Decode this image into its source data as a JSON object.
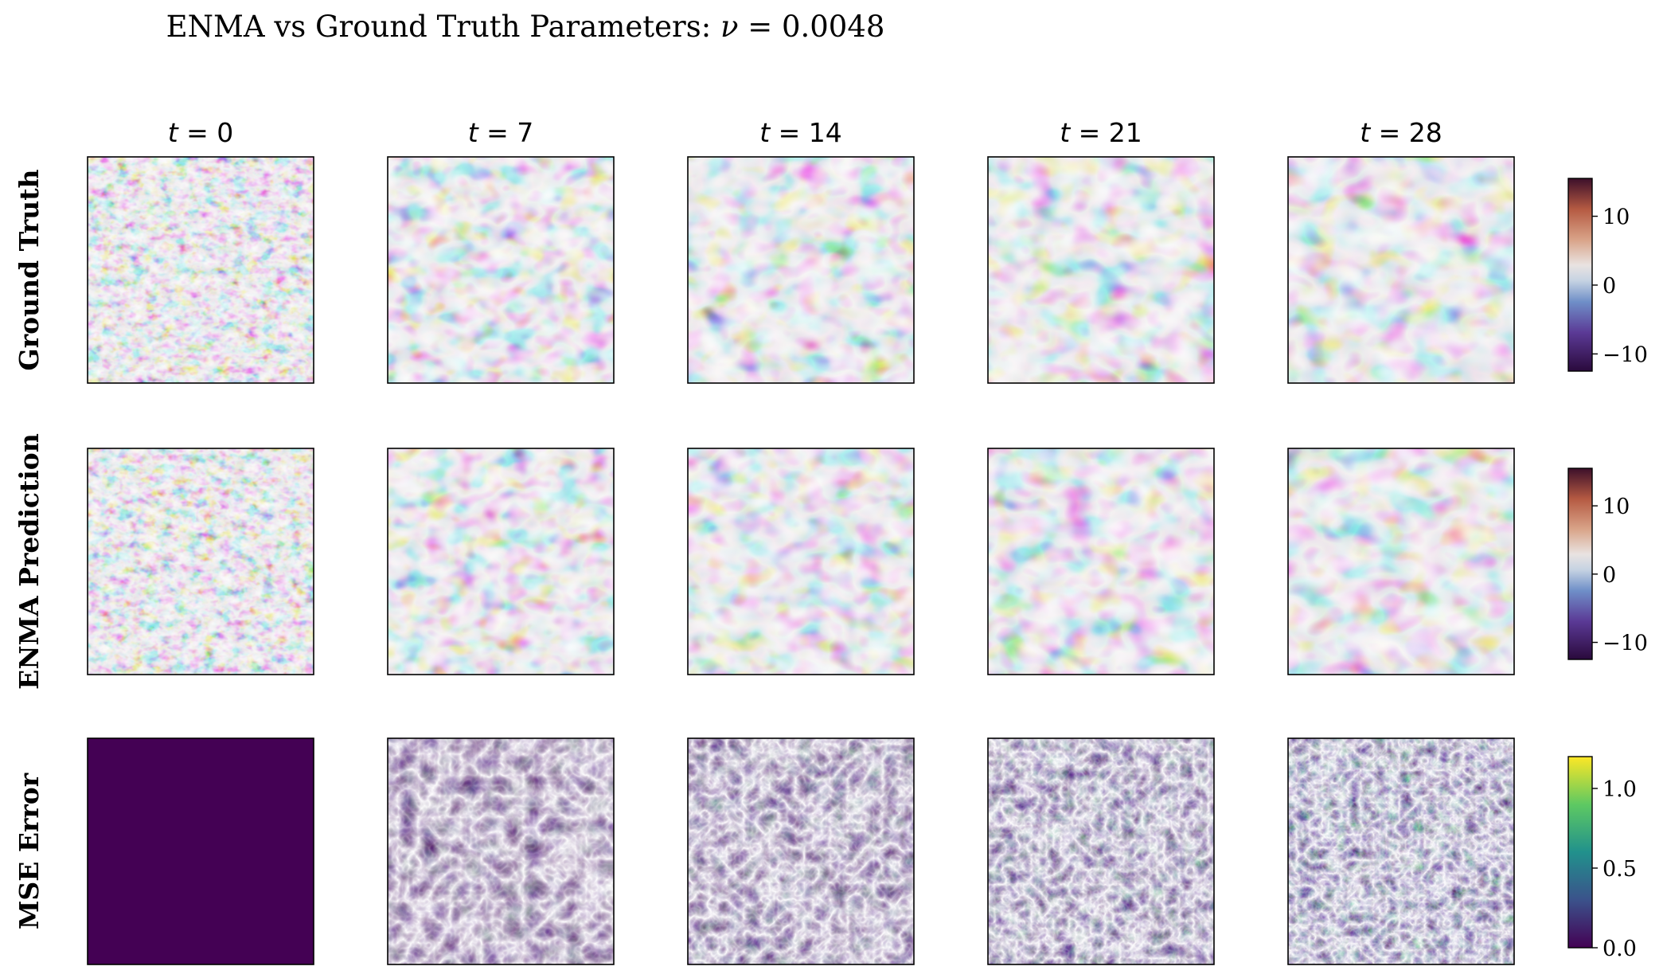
{
  "chart_data": {
    "type": "heatmap",
    "title": "ENMA vs Ground Truth Parameters: ν = 0.0048",
    "title_prefix": "ENMA vs Ground Truth Parameters: ",
    "title_nu": "ν",
    "title_value": " = 0.0048",
    "columns": [
      {
        "var": "t",
        "value": "0"
      },
      {
        "var": "t",
        "value": "7"
      },
      {
        "var": "t",
        "value": "14"
      },
      {
        "var": "t",
        "value": "21"
      },
      {
        "var": "t",
        "value": "28"
      }
    ],
    "rows": [
      {
        "label": "Ground Truth",
        "colormap": "twilight_shifted",
        "colorbar": {
          "ticks": [
            {
              "label": "10",
              "value": 10
            },
            {
              "label": "0",
              "value": 0
            },
            {
              "label": "−10",
              "value": -10
            }
          ],
          "vmin": -12.5,
          "vmax": 15.5
        }
      },
      {
        "label": "ENMA Prediction",
        "colormap": "twilight_shifted",
        "colorbar": {
          "ticks": [
            {
              "label": "10",
              "value": 10
            },
            {
              "label": "0",
              "value": 0
            },
            {
              "label": "−10",
              "value": -10
            }
          ],
          "vmin": -12.5,
          "vmax": 15.5
        }
      },
      {
        "label": "MSE Error",
        "colormap": "viridis",
        "colorbar": {
          "ticks": [
            {
              "label": "1.0",
              "value": 1.0
            },
            {
              "label": "0.5",
              "value": 0.5
            },
            {
              "label": "0.0",
              "value": 0.0
            }
          ],
          "vmin": 0.0,
          "vmax": 1.2
        }
      }
    ],
    "grid": false,
    "axis_ticks": false
  }
}
